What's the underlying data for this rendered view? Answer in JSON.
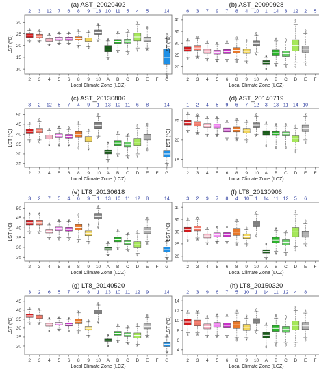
{
  "chart_data": [
    {
      "type": "box",
      "title": "(a) AST_20020402",
      "ylabel": "LST (°C)",
      "xlabel": "Local Climate Zone (LCZ)",
      "categories": [
        "2",
        "3",
        "4",
        "5",
        "6",
        "8",
        "9",
        "10",
        "A",
        "B",
        "C",
        "D",
        "E",
        "F",
        "G"
      ],
      "ranks": [
        "2",
        "3",
        "12",
        "7",
        "6",
        "8",
        "9",
        "13",
        "10",
        "11",
        "5",
        "4",
        "5",
        "",
        "14"
      ],
      "yticks": [
        10,
        15,
        20,
        25,
        30
      ],
      "ylim": [
        8,
        33
      ],
      "boxes": [
        [
          22,
          23.5,
          24.2,
          25,
          26.5
        ],
        [
          22,
          23.3,
          24,
          24.8,
          26
        ],
        [
          20.5,
          21.8,
          22.4,
          23,
          24.5
        ],
        [
          21,
          22.2,
          22.9,
          23.6,
          25
        ],
        [
          21,
          22.2,
          22.9,
          23.6,
          25
        ],
        [
          20,
          22.4,
          23,
          23.8,
          26
        ],
        [
          19.5,
          21.8,
          22.4,
          23.2,
          25.5
        ],
        [
          22.5,
          24.7,
          25.6,
          26.6,
          28.5
        ],
        [
          15,
          17.4,
          18.6,
          20,
          22
        ],
        [
          18,
          20.9,
          21.8,
          22.6,
          25
        ],
        [
          17.5,
          21,
          21.9,
          22.7,
          25.5
        ],
        [
          19,
          22,
          23.7,
          25.2,
          29
        ],
        [
          19,
          21.8,
          22.8,
          23.6,
          27
        ],
        null,
        [
          8,
          12,
          15,
          18.5,
          23
        ]
      ]
    },
    {
      "type": "box",
      "title": "(b) AST_20090928",
      "ylabel": "LST (°C)",
      "xlabel": "Local Climate Zone (LCZ)",
      "categories": [
        "2",
        "3",
        "4",
        "5",
        "6",
        "8",
        "9",
        "10",
        "A",
        "B",
        "C",
        "D",
        "E",
        "F",
        "G"
      ],
      "ranks": [
        "6",
        "3",
        "7",
        "9",
        "7",
        "8",
        "4",
        "10",
        "1",
        "14",
        "3",
        "12",
        "2",
        "5",
        "13"
      ],
      "yticks": [
        20,
        25,
        30,
        35,
        40
      ],
      "ylim": [
        17,
        42
      ],
      "boxes": [
        [
          24,
          26.6,
          27.5,
          28.4,
          31
        ],
        [
          24.5,
          27.1,
          28,
          29,
          32
        ],
        [
          23.5,
          25.7,
          26.6,
          27.5,
          30
        ],
        [
          23,
          25.4,
          26.2,
          27.1,
          29.5
        ],
        [
          23,
          25.6,
          26.5,
          27.4,
          30
        ],
        [
          23,
          25.9,
          27,
          28.1,
          31.5
        ],
        [
          22.5,
          25.7,
          26.6,
          27.5,
          30.5
        ],
        [
          26,
          28.9,
          30,
          31,
          33.5
        ],
        [
          19.5,
          21,
          21.9,
          22.7,
          24
        ],
        [
          21.5,
          24.7,
          26,
          27.2,
          31
        ],
        [
          21,
          24.4,
          25.6,
          26.8,
          30.5
        ],
        [
          22,
          26.8,
          29,
          31.5,
          38
        ],
        [
          22,
          26.2,
          27.5,
          28.8,
          34
        ],
        null,
        [
          18,
          21.5,
          23,
          24.5,
          27.5
        ]
      ]
    },
    {
      "type": "box",
      "title": "(c) AST_20130806",
      "ylabel": "LST (°C)",
      "xlabel": "Local Climate Zone (LCZ)",
      "categories": [
        "2",
        "3",
        "4",
        "5",
        "6",
        "8",
        "9",
        "10",
        "A",
        "B",
        "C",
        "D",
        "E",
        "F",
        "G"
      ],
      "ranks": [
        "3",
        "2",
        "12",
        "5",
        "7",
        "4",
        "9",
        "1",
        "13",
        "10",
        "11",
        "6",
        "8",
        "",
        "14"
      ],
      "yticks": [
        25,
        30,
        35,
        40,
        45,
        50
      ],
      "ylim": [
        23,
        53
      ],
      "boxes": [
        [
          37,
          40.3,
          41.5,
          42.6,
          45
        ],
        [
          37,
          40.8,
          41.8,
          43,
          46.5
        ],
        [
          35,
          37.5,
          38.5,
          39.5,
          42
        ],
        [
          35,
          38.2,
          39.2,
          40.2,
          43
        ],
        [
          35,
          37.9,
          38.9,
          39.9,
          42.5
        ],
        [
          34,
          38.3,
          39.8,
          41.4,
          45
        ],
        [
          33,
          36.3,
          37.5,
          38.8,
          41.5
        ],
        [
          39,
          43,
          44.5,
          46,
          49
        ],
        [
          27,
          30,
          31,
          32,
          35
        ],
        [
          30,
          34.3,
          35.5,
          36.7,
          40
        ],
        [
          29,
          33.5,
          34.8,
          36,
          39
        ],
        [
          30,
          34.3,
          36,
          37.8,
          43
        ],
        [
          33,
          37,
          38.5,
          40,
          44
        ],
        null,
        [
          25,
          28.5,
          30,
          31.5,
          34
        ]
      ]
    },
    {
      "type": "box",
      "title": "(d) AST_20140719",
      "ylabel": "LST (°C)",
      "xlabel": "Local Climate Zone (LCZ)",
      "categories": [
        "2",
        "3",
        "4",
        "5",
        "6",
        "8",
        "9",
        "10",
        "A",
        "B",
        "C",
        "D",
        "E",
        "F",
        "G"
      ],
      "ranks": [
        "1",
        "2",
        "4",
        "5",
        "9",
        "6",
        "7",
        "12",
        "3",
        "13",
        "11",
        "14",
        "10",
        "",
        "8"
      ],
      "yticks": [
        15,
        20,
        25
      ],
      "ylim": [
        13,
        28
      ],
      "boxes": [
        [
          22.5,
          23.8,
          24.4,
          25,
          26.5
        ],
        [
          22,
          23.5,
          24.1,
          24.7,
          26
        ],
        [
          21.5,
          23.2,
          23.7,
          24.2,
          25.5
        ],
        [
          21.5,
          23.1,
          23.6,
          24.1,
          25.5
        ],
        [
          20.5,
          22.1,
          22.6,
          23.1,
          24.5
        ],
        [
          20.5,
          22.1,
          22.7,
          23.3,
          25
        ],
        [
          20,
          21.8,
          22.4,
          23,
          24.5
        ],
        [
          21.5,
          23.2,
          23.8,
          24.4,
          26
        ],
        [
          19,
          21.2,
          21.8,
          22.4,
          24
        ],
        [
          18.5,
          21.2,
          21.7,
          22.2,
          23.5
        ],
        [
          18.5,
          21.1,
          21.6,
          22.1,
          23.5
        ],
        [
          17.5,
          19.5,
          20.3,
          21.1,
          23
        ],
        [
          20,
          22.2,
          23,
          23.8,
          26
        ],
        null,
        [
          19.5,
          21.8,
          22.5,
          23.2,
          25
        ]
      ]
    },
    {
      "type": "box",
      "title": "(e) LT8_20130618",
      "ylabel": "LST (°C)",
      "xlabel": "Local Climate Zone (LCZ)",
      "categories": [
        "2",
        "3",
        "4",
        "5",
        "6",
        "8",
        "9",
        "10",
        "A",
        "B",
        "C",
        "D",
        "E",
        "F",
        "G"
      ],
      "ranks": [
        "3",
        "2",
        "7",
        "5",
        "4",
        "6",
        "9",
        "1",
        "13",
        "10",
        "11",
        "12",
        "8",
        "",
        "14"
      ],
      "yticks": [
        25,
        30,
        35,
        40,
        45,
        50
      ],
      "ylim": [
        23,
        53
      ],
      "boxes": [
        [
          38,
          41.5,
          42.6,
          43.8,
          46.5
        ],
        [
          38,
          41.5,
          42.6,
          43.8,
          46.5
        ],
        [
          35,
          37.3,
          38.2,
          39.2,
          41.5
        ],
        [
          35,
          38.5,
          39.5,
          40.5,
          43
        ],
        [
          35,
          38.3,
          39.3,
          40.3,
          43
        ],
        [
          34,
          38.8,
          40.3,
          41.8,
          45.5
        ],
        [
          33,
          36,
          37.2,
          38.4,
          41
        ],
        [
          41,
          44.5,
          45.9,
          47.2,
          50
        ],
        [
          26.5,
          28.6,
          29.3,
          30,
          32
        ],
        [
          30,
          32.8,
          34,
          35.2,
          38
        ],
        [
          29,
          31.5,
          32.6,
          33.7,
          36.5
        ],
        [
          27,
          29.8,
          31.3,
          32.9,
          37
        ],
        [
          33,
          37,
          38.6,
          40.2,
          44
        ],
        null,
        [
          25,
          27.7,
          28.9,
          30.1,
          33
        ]
      ]
    },
    {
      "type": "box",
      "title": "(f) LT8_20130906",
      "ylabel": "LST (°C)",
      "xlabel": "Local Climate Zone (LCZ)",
      "categories": [
        "2",
        "3",
        "4",
        "5",
        "6",
        "8",
        "9",
        "10",
        "A",
        "B",
        "C",
        "D",
        "E",
        "F",
        "G"
      ],
      "ranks": [
        "3",
        "2",
        "9",
        "7",
        "8",
        "4",
        "10",
        "1",
        "14",
        "11",
        "12",
        "5",
        "6",
        "",
        "13"
      ],
      "yticks": [
        20,
        25,
        30,
        35,
        40
      ],
      "ylim": [
        18,
        42
      ],
      "boxes": [
        [
          27,
          29.9,
          30.9,
          31.9,
          34.5
        ],
        [
          27.5,
          30.3,
          31.3,
          32.4,
          35
        ],
        [
          25.5,
          27.5,
          28.3,
          29.1,
          31
        ],
        [
          26,
          27.9,
          28.7,
          29.5,
          31.5
        ],
        [
          26,
          28,
          28.8,
          29.6,
          31.5
        ],
        [
          25.5,
          28.5,
          29.8,
          31.2,
          34
        ],
        [
          25,
          27.3,
          28.2,
          29.1,
          31
        ],
        [
          29,
          32.1,
          33.2,
          34.3,
          37
        ],
        [
          19.5,
          21.3,
          22,
          22.7,
          24.5
        ],
        [
          22,
          25.4,
          26.6,
          27.8,
          30.5
        ],
        [
          21.5,
          24.6,
          25.7,
          26.8,
          29.5
        ],
        [
          24,
          28,
          29.9,
          31.8,
          37
        ],
        [
          25,
          27.8,
          29,
          30.2,
          33.5
        ],
        null,
        [
          20,
          22,
          22.8,
          23.6,
          26
        ]
      ]
    },
    {
      "type": "box",
      "title": "(g) LT8_20140520",
      "ylabel": "LST (°C)",
      "xlabel": "Local Climate Zone (LCZ)",
      "categories": [
        "2",
        "3",
        "4",
        "5",
        "6",
        "8",
        "9",
        "10",
        "A",
        "B",
        "C",
        "D",
        "E",
        "F",
        "G"
      ],
      "ranks": [
        "3",
        "2",
        "6",
        "5",
        "7",
        "4",
        "8",
        "1",
        "13",
        "10",
        "11",
        "12",
        "9",
        "",
        "14"
      ],
      "yticks": [
        20,
        25,
        30,
        35,
        40,
        45
      ],
      "ylim": [
        15,
        48
      ],
      "boxes": [
        [
          33,
          36,
          36.9,
          37.8,
          40.5
        ],
        [
          33,
          35.4,
          36.3,
          37.2,
          40
        ],
        [
          29,
          31.1,
          31.9,
          32.7,
          35
        ],
        [
          29.5,
          31.6,
          32.4,
          33.2,
          35.5
        ],
        [
          29,
          31.2,
          32,
          32.8,
          35
        ],
        [
          28.5,
          32.5,
          33.8,
          35.1,
          38.5
        ],
        [
          26,
          28.9,
          29.9,
          30.9,
          33.5
        ],
        [
          34,
          37.8,
          39,
          40.2,
          43
        ],
        [
          20.5,
          22.5,
          23.2,
          23.9,
          25.5
        ],
        [
          23,
          26,
          27.1,
          28.2,
          31
        ],
        [
          22,
          25.2,
          26.3,
          27.4,
          30
        ],
        [
          21,
          24.5,
          25.9,
          27.3,
          31
        ],
        [
          26,
          29.6,
          31,
          32.4,
          36
        ],
        null,
        [
          17,
          19.8,
          21,
          22.2,
          25
        ]
      ]
    },
    {
      "type": "box",
      "title": "(h) LT8_20150320",
      "ylabel": "LST (°C)",
      "xlabel": "Local Climate Zone (LCZ)",
      "categories": [
        "2",
        "3",
        "4",
        "5",
        "6",
        "8",
        "9",
        "10",
        "A",
        "B",
        "C",
        "D",
        "E",
        "F",
        "G"
      ],
      "ranks": [
        "2",
        "3",
        "9",
        "6",
        "7",
        "5",
        "10",
        "1",
        "14",
        "11",
        "12",
        "4",
        "8",
        "",
        "13"
      ],
      "yticks": [
        4,
        6,
        8,
        10,
        12,
        14
      ],
      "ylim": [
        3,
        15
      ],
      "boxes": [
        [
          7.5,
          9.1,
          9.7,
          10.3,
          11.5
        ],
        [
          7.5,
          8.9,
          9.5,
          10.1,
          11.5
        ],
        [
          7,
          8.3,
          8.8,
          9.3,
          10.5
        ],
        [
          7,
          8.6,
          9.1,
          9.6,
          10.8
        ],
        [
          7,
          8.5,
          9,
          9.5,
          10.8
        ],
        [
          6.5,
          8.4,
          9.1,
          9.8,
          11.5
        ],
        [
          6.5,
          8,
          8.6,
          9.2,
          10.5
        ],
        [
          8,
          9.4,
          9.9,
          10.4,
          11.8
        ],
        [
          5,
          6.4,
          7,
          7.6,
          9
        ],
        [
          5.5,
          7.8,
          8.4,
          9,
          10.5
        ],
        [
          5.5,
          7.6,
          8.2,
          8.8,
          10.3
        ],
        [
          5.5,
          8.1,
          9,
          9.9,
          12
        ],
        [
          6.5,
          8.2,
          8.9,
          9.6,
          11.5
        ],
        null,
        [
          6.5,
          7.7,
          8.1,
          8.5,
          9.5
        ]
      ]
    }
  ],
  "colors": [
    "#d7191c",
    "#f07a6a",
    "#f4b4c4",
    "#ee82ee",
    "#c832c8",
    "#e8792a",
    "#f2d65c",
    "#7f7f7f",
    "#1a5c1a",
    "#2bb52b",
    "#66cc66",
    "#a6e85a",
    "#b0b0b0",
    "#fffa9a",
    "#1e8fe6"
  ]
}
